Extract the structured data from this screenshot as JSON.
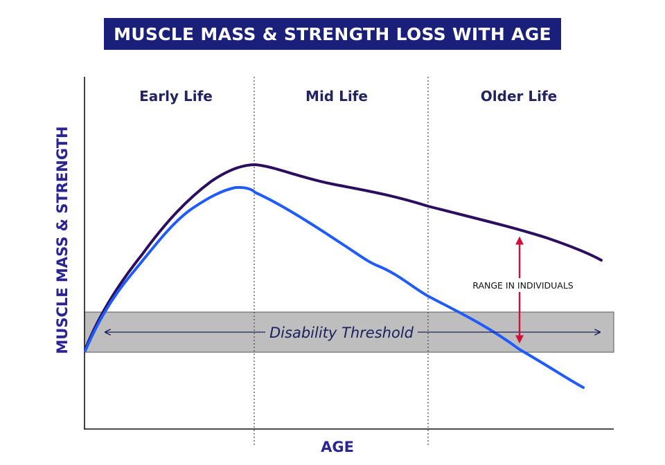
{
  "chart_data": {
    "type": "line",
    "title": "MUSCLE MASS & STRENGTH LOSS WITH AGE",
    "xlabel": "AGE",
    "ylabel": "MUSCLE MASS & STRENGTH",
    "phases": [
      "Early Life",
      "Mid Life",
      "Older Life"
    ],
    "threshold_band": {
      "label": "Disability Threshold",
      "color": "#bebebe"
    },
    "annotation": {
      "label": "RANGE IN INDIVIDUALS",
      "color": "#d0103a"
    },
    "series": [
      {
        "color": "#2b0f5e"
      },
      {
        "color": "#1f5bff"
      }
    ],
    "grid": false,
    "axis_color": "#111111",
    "divider_style": "dotted"
  }
}
